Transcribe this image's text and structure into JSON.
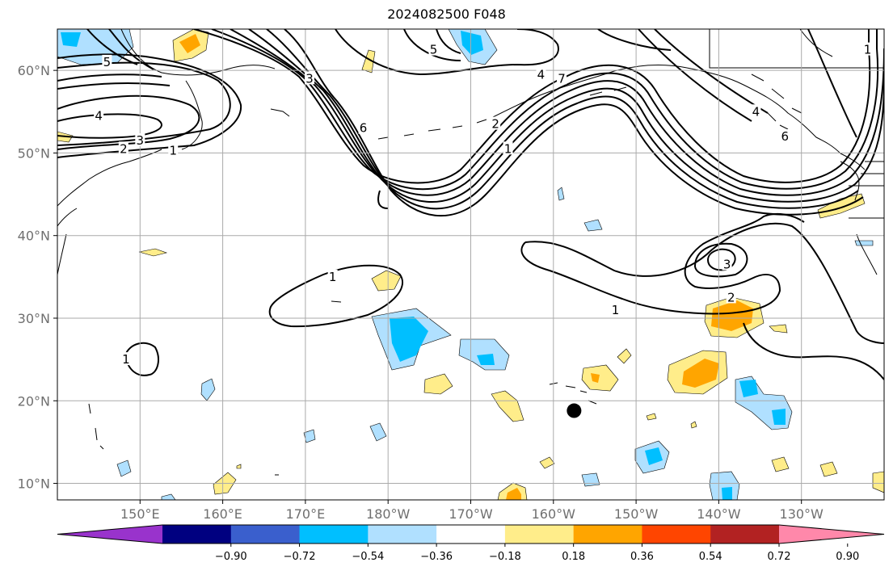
{
  "title": "2024082500 F048",
  "map": {
    "projection": "plate carree",
    "lon_range": [
      140,
      240
    ],
    "lat_range": [
      8,
      65
    ],
    "grid": true,
    "lon_ticks": [
      {
        "lon": 150,
        "label": "150°E"
      },
      {
        "lon": 160,
        "label": "160°E"
      },
      {
        "lon": 170,
        "label": "170°E"
      },
      {
        "lon": 180,
        "label": "180°W"
      },
      {
        "lon": 190,
        "label": "170°W"
      },
      {
        "lon": 200,
        "label": "160°W"
      },
      {
        "lon": 210,
        "label": "150°W"
      },
      {
        "lon": 220,
        "label": "140°W"
      },
      {
        "lon": 230,
        "label": "130°W"
      }
    ],
    "lat_ticks": [
      {
        "lat": 10,
        "label": "10°N"
      },
      {
        "lat": 20,
        "label": "20°N"
      },
      {
        "lat": 30,
        "label": "30°N"
      },
      {
        "lat": 40,
        "label": "40°N"
      },
      {
        "lat": 50,
        "label": "50°N"
      },
      {
        "lat": 60,
        "label": "60°N"
      }
    ],
    "marker": {
      "lon": 202.5,
      "lat": 18.8,
      "color": "#000000"
    }
  },
  "colorbar": {
    "colors": [
      "#9933cc",
      "#000080",
      "#3a5fcd",
      "#00bfff",
      "#b0e0ff",
      "#ffffff",
      "#ffed8a",
      "#ffa500",
      "#ff4500",
      "#b22222",
      "#ff88aa"
    ],
    "ticks": [
      "−0.90",
      "−0.72",
      "−0.54",
      "−0.36",
      "−0.18",
      "0.18",
      "0.36",
      "0.54",
      "0.72",
      "0.90"
    ],
    "extend": "both"
  },
  "contour_labels": [
    {
      "text": "4",
      "lon": 145,
      "lat": 54.5
    },
    {
      "text": "3",
      "lon": 150,
      "lat": 51.5
    },
    {
      "text": "2",
      "lon": 148,
      "lat": 50.5
    },
    {
      "text": "1",
      "lon": 154,
      "lat": 50.3
    },
    {
      "text": "5",
      "lon": 146,
      "lat": 61
    },
    {
      "text": "3",
      "lon": 170.5,
      "lat": 59
    },
    {
      "text": "6",
      "lon": 177,
      "lat": 53
    },
    {
      "text": "5",
      "lon": 185.5,
      "lat": 62.5
    },
    {
      "text": "4",
      "lon": 198.5,
      "lat": 59.5
    },
    {
      "text": "7",
      "lon": 201,
      "lat": 59
    },
    {
      "text": "2",
      "lon": 193,
      "lat": 53.5
    },
    {
      "text": "1",
      "lon": 194.5,
      "lat": 50.5
    },
    {
      "text": "4",
      "lon": 224.5,
      "lat": 55
    },
    {
      "text": "6",
      "lon": 228,
      "lat": 52
    },
    {
      "text": "1",
      "lon": 238,
      "lat": 62.5
    },
    {
      "text": "1",
      "lon": 173.3,
      "lat": 35
    },
    {
      "text": "3",
      "lon": 221,
      "lat": 36.5
    },
    {
      "text": "2",
      "lon": 221.5,
      "lat": 32.5
    },
    {
      "text": "1",
      "lon": 207.5,
      "lat": 31
    },
    {
      "text": "1",
      "lon": 148.3,
      "lat": 25
    }
  ],
  "colors": {
    "neg_light": "#b0e0ff",
    "neg_mid": "#00bfff",
    "pos_light": "#ffed8a",
    "pos_mid": "#ffa500",
    "contour": "#000000",
    "grid": "#aaaaaa"
  }
}
